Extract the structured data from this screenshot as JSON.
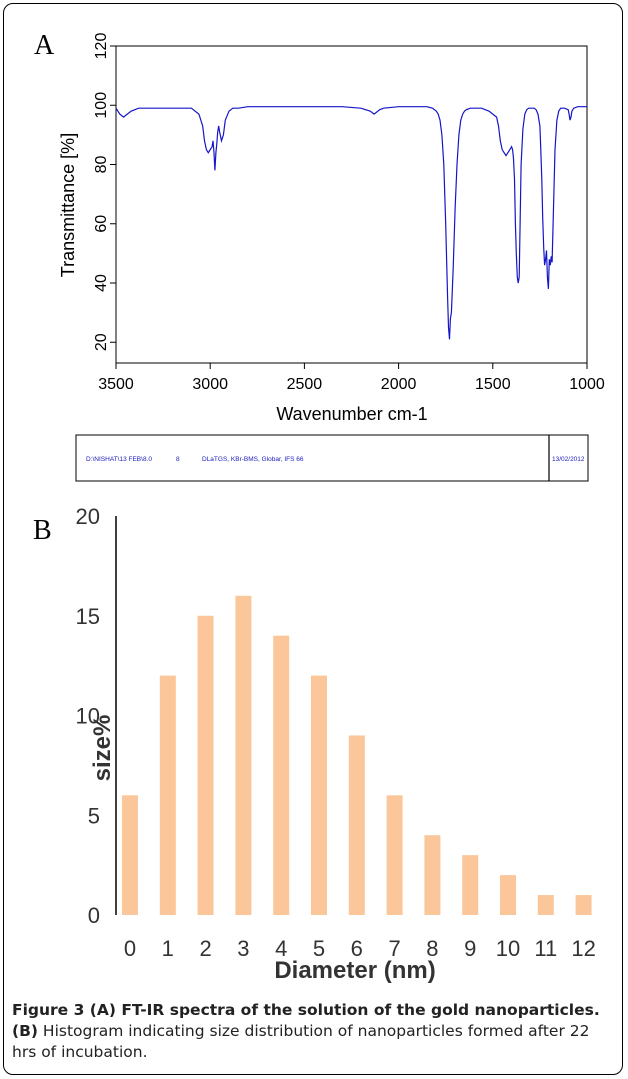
{
  "panels": {
    "a_label": "A",
    "b_label": "B"
  },
  "chart_data": [
    {
      "type": "line",
      "xlabel": "Wavenumber cm-1",
      "ylabel": "Transmittance [%]",
      "xlim": [
        3500,
        1000
      ],
      "ylim": [
        13,
        120
      ],
      "x_ticks": [
        3500,
        3000,
        2500,
        2000,
        1500,
        1000
      ],
      "y_ticks": [
        20,
        40,
        60,
        80,
        100,
        120
      ],
      "grid": false,
      "line_color": "#1515c8",
      "series": [
        {
          "x": [
            3500,
            3480,
            3460,
            3440,
            3420,
            3380,
            3300,
            3200,
            3100,
            3060,
            3040,
            3030,
            3020,
            3010,
            3000,
            2990,
            2985,
            2980,
            2975,
            2970,
            2965,
            2960,
            2955,
            2950,
            2940,
            2930,
            2920,
            2900,
            2880,
            2850,
            2800,
            2700,
            2500,
            2300,
            2200,
            2150,
            2130,
            2100,
            2080,
            2000,
            1900,
            1850,
            1820,
            1800,
            1790,
            1780,
            1770,
            1760,
            1750,
            1745,
            1740,
            1735,
            1730,
            1725,
            1720,
            1710,
            1700,
            1690,
            1680,
            1670,
            1660,
            1650,
            1640,
            1620,
            1600,
            1580,
            1560,
            1540,
            1520,
            1500,
            1480,
            1470,
            1460,
            1450,
            1440,
            1430,
            1420,
            1410,
            1400,
            1395,
            1390,
            1385,
            1380,
            1375,
            1370,
            1365,
            1360,
            1355,
            1350,
            1340,
            1330,
            1320,
            1310,
            1300,
            1290,
            1280,
            1270,
            1260,
            1250,
            1245,
            1240,
            1235,
            1230,
            1225,
            1220,
            1215,
            1210,
            1205,
            1200,
            1195,
            1190,
            1185,
            1180,
            1170,
            1160,
            1150,
            1140,
            1120,
            1100,
            1095,
            1090,
            1085,
            1080,
            1070,
            1050,
            1020,
            1000
          ],
          "y": [
            99,
            97,
            96,
            97,
            98,
            99,
            99,
            99,
            99,
            97,
            93,
            88,
            85,
            84,
            85,
            86,
            88,
            84,
            78,
            84,
            87,
            91,
            93,
            91,
            88,
            90,
            95,
            98,
            99,
            99,
            99.5,
            99.5,
            99.5,
            99.5,
            99,
            98,
            97,
            98.5,
            99,
            99.5,
            99.5,
            99.5,
            99,
            98,
            97,
            95,
            90,
            80,
            60,
            48,
            35,
            25,
            21,
            28,
            30,
            45,
            65,
            80,
            90,
            95,
            97,
            98,
            98.5,
            99,
            99,
            99,
            99,
            98.5,
            98,
            97,
            96,
            93,
            88,
            85,
            84,
            83,
            84,
            85,
            86,
            85,
            82,
            75,
            60,
            50,
            42,
            40,
            42,
            60,
            80,
            92,
            97,
            98.5,
            99,
            99,
            99,
            99,
            98.5,
            97,
            93,
            85,
            75,
            62,
            52,
            46,
            48,
            51,
            42,
            38,
            48,
            46,
            49,
            47,
            60,
            85,
            95,
            98,
            99,
            99,
            98.5,
            97,
            95,
            96,
            98,
            99,
            99.5,
            99.5,
            99.5
          ]
        }
      ],
      "footer": {
        "path": "D:\\NISHAT\\13 FEB\\8.0",
        "number": "8",
        "instrument": "DLaTGS, KBr-BMS, Globar, IFS 66",
        "date": "13/02/2012"
      }
    },
    {
      "type": "bar",
      "xlabel": "Diameter (nm)",
      "ylabel": "size%",
      "ylim": [
        0,
        20
      ],
      "y_ticks": [
        0,
        5,
        10,
        15,
        20
      ],
      "y_tick_labels": [
        "0",
        "5",
        "10",
        "15",
        "20"
      ],
      "grid": false,
      "bar_color": "#fbc79a",
      "categories": [
        "0",
        "1",
        "2",
        "3",
        "4",
        "5",
        "6",
        "7",
        "8",
        "9",
        "10",
        "11",
        "12"
      ],
      "values": [
        6,
        12,
        15,
        16,
        14,
        12,
        9,
        6,
        4,
        3,
        2,
        1,
        1
      ]
    }
  ],
  "caption": {
    "title": "Figure 3 (A) FT-IR spectra of the solution of the gold nanoparticles. (B)",
    "body": "Histogram indicating size distribution of nanoparticles formed after 22 hrs of incubation."
  }
}
